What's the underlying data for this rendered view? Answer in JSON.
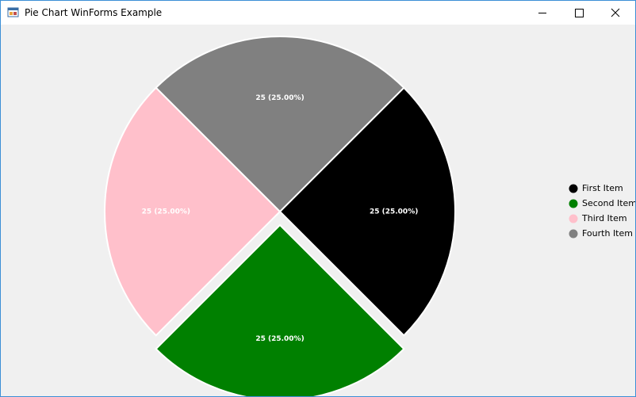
{
  "window": {
    "title": "Pie Chart WinForms Example"
  },
  "chart_data": {
    "type": "pie",
    "categories": [
      "First Item",
      "Second Item",
      "Third Item",
      "Fourth Item"
    ],
    "values": [
      25,
      25,
      25,
      25
    ],
    "value_labels": [
      "25 (25.00%)",
      "25 (25.00%)",
      "25 (25.00%)",
      "25 (25.00%)"
    ],
    "colors": [
      "#000000",
      "#008000",
      "#ffc0cb",
      "#808080"
    ],
    "exploded": [
      false,
      true,
      false,
      false
    ],
    "legend": "right"
  }
}
